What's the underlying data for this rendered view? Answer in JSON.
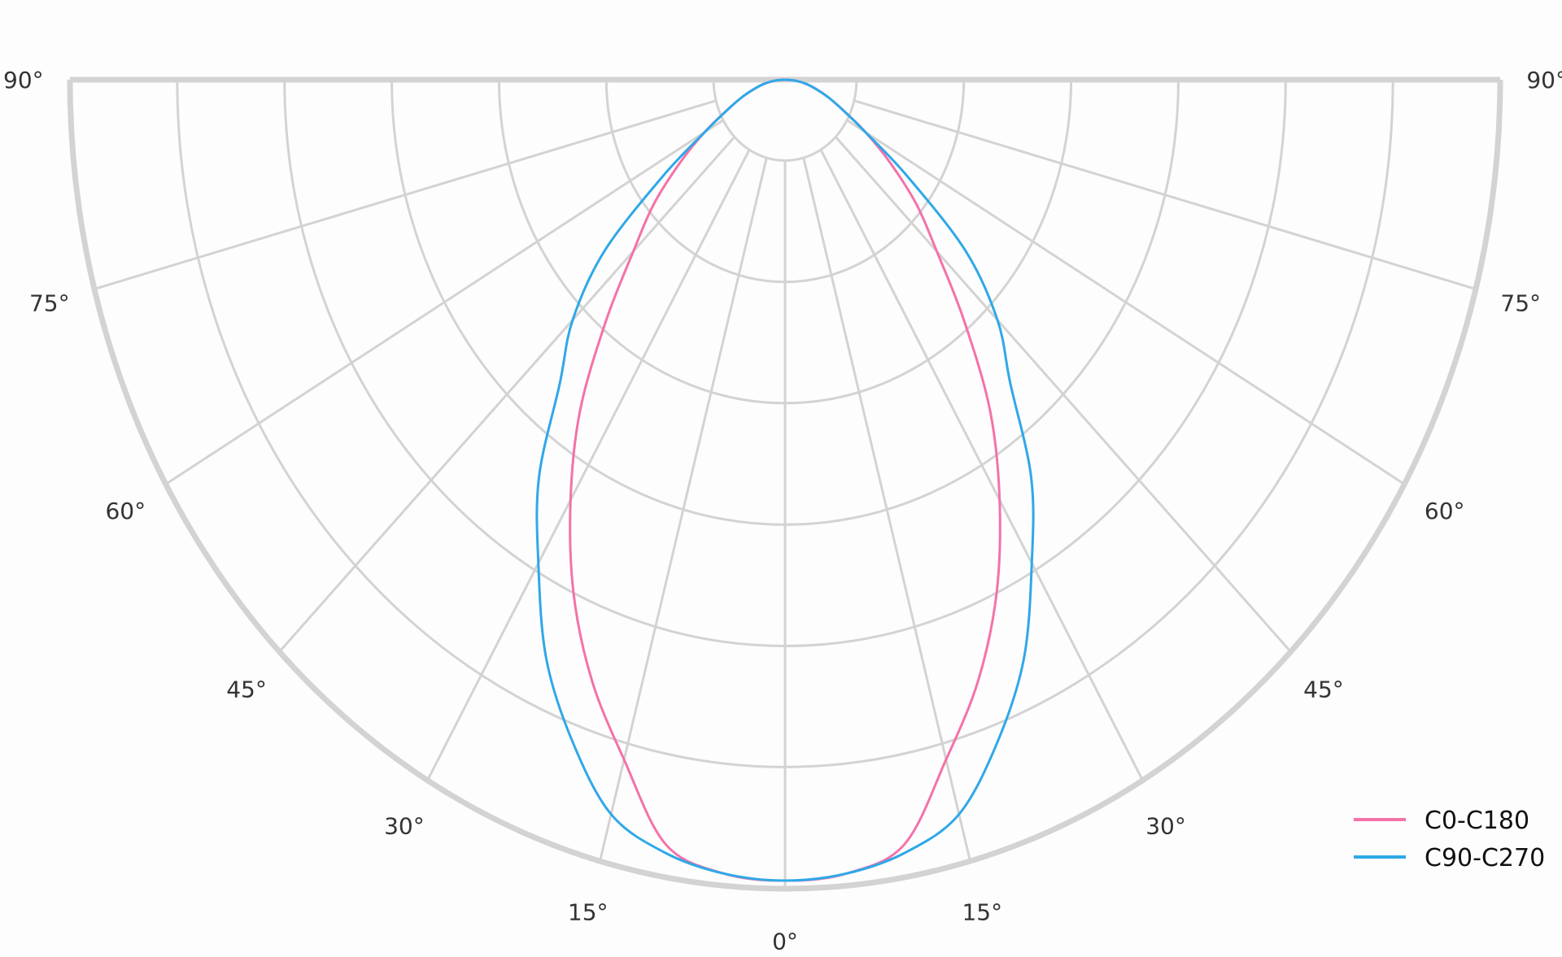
{
  "chart_data": {
    "type": "polar",
    "title": "",
    "angle_unit": "degrees",
    "angle_ticks": [
      "0°",
      "15°",
      "30°",
      "45°",
      "60°",
      "75°",
      "90°"
    ],
    "angle_tick_values": [
      0,
      15,
      30,
      45,
      60,
      75,
      90
    ],
    "radial_grid_relative": [
      0.1,
      0.25,
      0.4,
      0.55,
      0.7,
      0.85,
      1.0
    ],
    "radial_tick_labels": [],
    "rlim": [
      0,
      1
    ],
    "grid": true,
    "legend_position": "bottom-right",
    "angles": [
      0,
      5,
      10,
      15,
      20,
      25,
      30,
      35,
      40,
      45,
      50,
      55,
      60,
      65,
      70,
      75,
      80,
      85,
      90
    ],
    "series": [
      {
        "name": "C0-C180",
        "color": "#f472a8",
        "values": [
          0.99,
          0.985,
          0.96,
          0.87,
          0.79,
          0.7,
          0.6,
          0.5,
          0.39,
          0.3,
          0.24,
          0.18,
          0.13,
          0.09,
          0.065,
          0.045,
          0.03,
          0.015,
          0
        ]
      },
      {
        "name": "C90-C270",
        "color": "#2fa8e8",
        "values": [
          0.99,
          0.985,
          0.97,
          0.94,
          0.87,
          0.79,
          0.69,
          0.6,
          0.49,
          0.42,
          0.33,
          0.21,
          0.13,
          0.09,
          0.065,
          0.045,
          0.03,
          0.015,
          0
        ]
      }
    ],
    "grid_color": "#d3d3d3"
  }
}
